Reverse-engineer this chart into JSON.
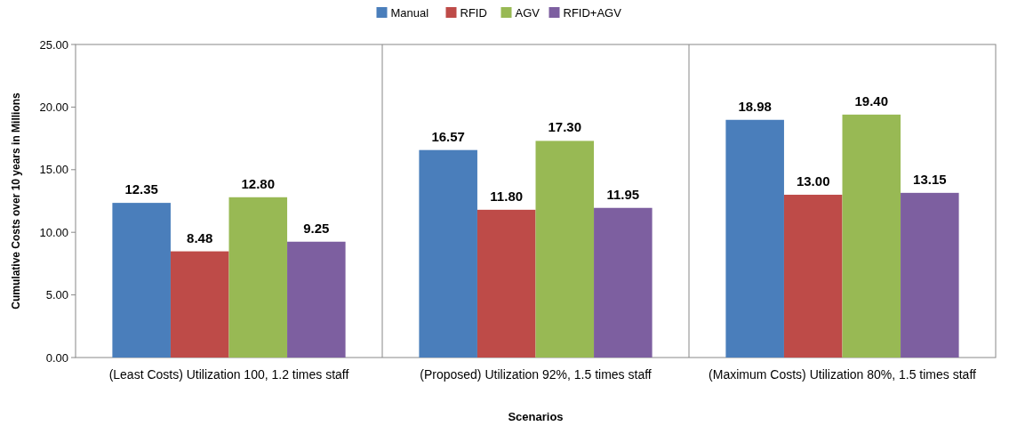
{
  "chart_data": {
    "type": "bar",
    "xlabel": "Scenarios",
    "ylabel": "Cumulative Costs over 10 years in Millions",
    "categories": [
      "(Least Costs) Utilization 100, 1.2 times staff",
      "(Proposed) Utilization 92%, 1.5 times staff",
      "(Maximum Costs) Utilization 80%, 1.5 times staff"
    ],
    "series": [
      {
        "name": "Manual",
        "color": "#4a7ebb",
        "values": [
          12.35,
          16.57,
          18.98
        ]
      },
      {
        "name": "RFID",
        "color": "#be4b48",
        "values": [
          8.48,
          11.8,
          13.0
        ]
      },
      {
        "name": "AGV",
        "color": "#98b954",
        "values": [
          12.8,
          17.3,
          19.4
        ]
      },
      {
        "name": "RFID+AGV",
        "color": "#7d5fa0",
        "values": [
          9.25,
          11.95,
          13.15
        ]
      }
    ],
    "value_labels": [
      [
        "12.35",
        "16.57",
        "18.98"
      ],
      [
        "8.48",
        "11.80",
        "13.00"
      ],
      [
        "12.80",
        "17.30",
        "19.40"
      ],
      [
        "9.25",
        "11.95",
        "13.15"
      ]
    ],
    "ylim": [
      0,
      25
    ],
    "yticks": [
      {
        "value": 0,
        "label": "0.00"
      },
      {
        "value": 5,
        "label": "5.00"
      },
      {
        "value": 10,
        "label": "10.00"
      },
      {
        "value": 15,
        "label": "15.00"
      },
      {
        "value": 20,
        "label": "20.00"
      },
      {
        "value": 25,
        "label": "25.00"
      }
    ],
    "grid": "x",
    "legend": "top"
  }
}
